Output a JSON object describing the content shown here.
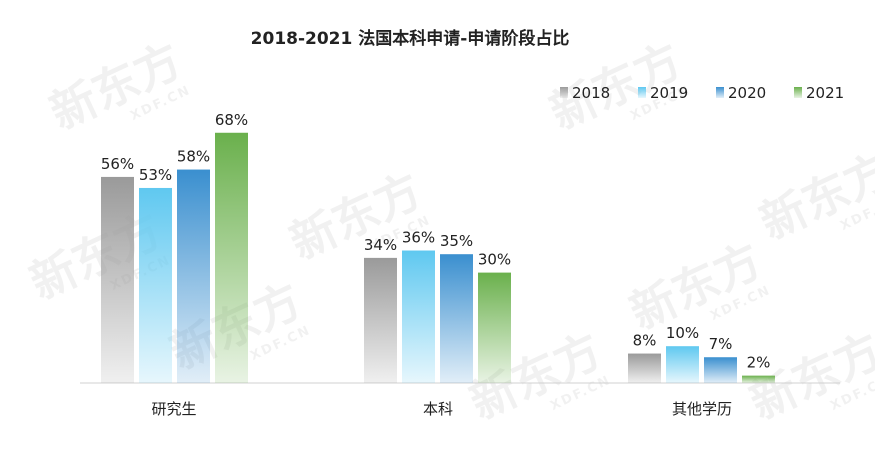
{
  "chart_data": {
    "type": "bar",
    "title": "2018-2021 法国本科申请-申请阶段占比",
    "categories": [
      "研究生",
      "本科",
      "其他学历"
    ],
    "series": [
      {
        "name": "2018",
        "values": [
          56,
          34,
          8
        ],
        "labels": [
          "56%",
          "34%",
          "8%"
        ],
        "color": "#9a9a9a"
      },
      {
        "name": "2019",
        "values": [
          53,
          36,
          10
        ],
        "labels": [
          "53%",
          "36%",
          "10%"
        ],
        "color": "#5fc8f0"
      },
      {
        "name": "2020",
        "values": [
          58,
          35,
          7
        ],
        "labels": [
          "58%",
          "35%",
          "7%"
        ],
        "color": "#3a8fcf"
      },
      {
        "name": "2021",
        "values": [
          68,
          30,
          2
        ],
        "labels": [
          "68%",
          "30%",
          "2%"
        ],
        "color": "#6ab04c"
      }
    ],
    "ylim": [
      0,
      100
    ],
    "legend": "top-right",
    "grid": false,
    "watermark": {
      "text": "新东方",
      "subtext": "XDF.CN"
    }
  }
}
